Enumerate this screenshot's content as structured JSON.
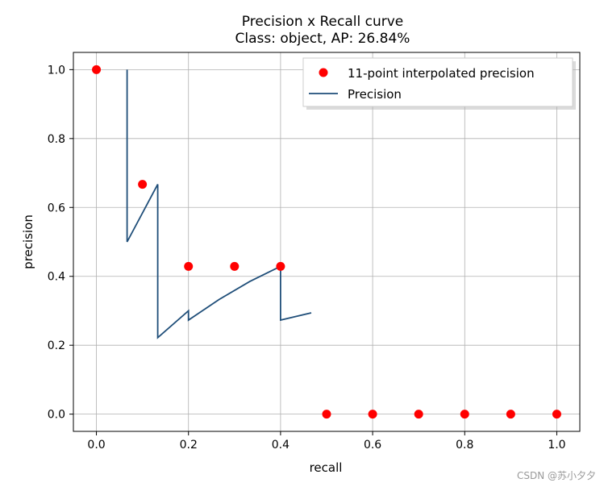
{
  "chart_data": {
    "type": "line",
    "title": "Precision x Recall curve",
    "subtitle": "Class: object, AP: 26.84%",
    "xlabel": "recall",
    "ylabel": "precision",
    "xlim": [
      -0.05,
      1.05
    ],
    "ylim": [
      -0.05,
      1.05
    ],
    "xticks": [
      0.0,
      0.2,
      0.4,
      0.6,
      0.8,
      1.0
    ],
    "yticks": [
      0.0,
      0.2,
      0.4,
      0.6,
      0.8,
      1.0
    ],
    "xtick_labels": [
      "0.0",
      "0.2",
      "0.4",
      "0.6",
      "0.8",
      "1.0"
    ],
    "ytick_labels": [
      "0.0",
      "0.2",
      "0.4",
      "0.6",
      "0.8",
      "1.0"
    ],
    "grid": true,
    "legend_position": "top-right",
    "series": [
      {
        "name": "11-point interpolated precision",
        "style": "markers",
        "color": "#ff0000",
        "x": [
          0.0,
          0.1,
          0.2,
          0.3,
          0.4,
          0.5,
          0.6,
          0.7,
          0.8,
          0.9,
          1.0
        ],
        "y": [
          1.0,
          0.667,
          0.429,
          0.429,
          0.429,
          0.0,
          0.0,
          0.0,
          0.0,
          0.0,
          0.0
        ]
      },
      {
        "name": "Precision",
        "style": "line",
        "color": "#1f4e79",
        "x": [
          0.0667,
          0.0667,
          0.1333,
          0.1333,
          0.2,
          0.2,
          0.2667,
          0.3333,
          0.4,
          0.4,
          0.4667
        ],
        "y": [
          1.0,
          0.5,
          0.667,
          0.222,
          0.3,
          0.273,
          0.333,
          0.385,
          0.429,
          0.273,
          0.294
        ]
      }
    ]
  },
  "watermark": "CSDN @苏小夕夕"
}
